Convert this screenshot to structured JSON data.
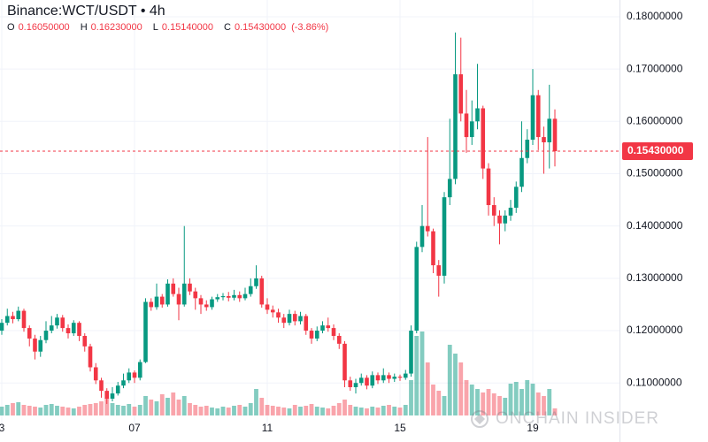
{
  "chart_data": {
    "type": "candlestick",
    "title": "Binance:WCT/USDT • 4h",
    "legend_items": [
      {
        "key": "O",
        "value": "0.16050000"
      },
      {
        "key": "H",
        "value": "0.16230000"
      },
      {
        "key": "L",
        "value": "0.15140000"
      },
      {
        "key": "C",
        "value": "0.15430000"
      }
    ],
    "change": "(-3.86%)",
    "last_price": {
      "value": 0.1543,
      "label": "0.15430000"
    },
    "watermark": "ONCHAIN INSIDER",
    "up_color": "#089981",
    "down_color": "#f23645",
    "grid": true,
    "categories": [
      "3",
      null,
      null,
      null,
      null,
      null,
      null,
      null,
      null,
      null,
      null,
      null,
      null,
      null,
      null,
      null,
      null,
      null,
      null,
      null,
      null,
      null,
      null,
      null,
      "07",
      null,
      null,
      null,
      null,
      null,
      null,
      null,
      null,
      null,
      null,
      null,
      null,
      null,
      null,
      null,
      null,
      null,
      null,
      null,
      null,
      null,
      null,
      null,
      "11",
      null,
      null,
      null,
      null,
      null,
      null,
      null,
      null,
      null,
      null,
      null,
      null,
      null,
      null,
      null,
      null,
      null,
      null,
      null,
      null,
      null,
      null,
      null,
      "15",
      null,
      null,
      null,
      null,
      null,
      null,
      null,
      null,
      null,
      null,
      null,
      null,
      null,
      null,
      null,
      null,
      null,
      null,
      null,
      null,
      null,
      null,
      null,
      "19",
      null,
      null,
      null,
      null
    ],
    "open": [
      0.12,
      0.1215,
      0.1228,
      0.1222,
      0.1238,
      0.1205,
      0.1185,
      0.116,
      0.1182,
      0.12,
      0.121,
      0.1225,
      0.1205,
      0.1195,
      0.1215,
      0.119,
      0.117,
      0.113,
      0.1105,
      0.1085,
      0.107,
      0.108,
      0.1095,
      0.1105,
      0.112,
      0.111,
      0.114,
      0.1255,
      0.1245,
      0.1265,
      0.125,
      0.129,
      0.127,
      0.125,
      0.129,
      0.1275,
      0.1262,
      0.125,
      0.1245,
      0.126,
      0.1264,
      0.1266,
      0.1263,
      0.1268,
      0.1262,
      0.127,
      0.1285,
      0.13,
      0.125,
      0.124,
      0.1235,
      0.1225,
      0.1215,
      0.1232,
      0.1218,
      0.1228,
      0.12,
      0.1185,
      0.12,
      0.121,
      0.1205,
      0.119,
      0.1175,
      0.1105,
      0.1092,
      0.11,
      0.111,
      0.1095,
      0.1115,
      0.1105,
      0.1115,
      0.1108,
      0.1112,
      0.111,
      0.1118,
      0.12,
      0.136,
      0.14,
      0.139,
      0.1325,
      0.1305,
      0.1455,
      0.149,
      0.169,
      0.1615,
      0.157,
      0.16,
      0.1625,
      0.151,
      0.144,
      0.142,
      0.1405,
      0.142,
      0.1435,
      0.1475,
      0.153,
      0.1565,
      0.165,
      0.157,
      0.156,
      0.1605
    ],
    "high": [
      0.1222,
      0.1242,
      0.1236,
      0.1246,
      0.1242,
      0.121,
      0.1192,
      0.119,
      0.1218,
      0.1228,
      0.1232,
      0.123,
      0.1212,
      0.122,
      0.1218,
      0.1195,
      0.1175,
      0.1138,
      0.111,
      0.109,
      0.1092,
      0.1102,
      0.1118,
      0.1128,
      0.1124,
      0.1145,
      0.1262,
      0.1262,
      0.129,
      0.127,
      0.1298,
      0.13,
      0.1282,
      0.14,
      0.13,
      0.1282,
      0.1268,
      0.1258,
      0.1265,
      0.127,
      0.1272,
      0.1274,
      0.1278,
      0.1275,
      0.1282,
      0.13,
      0.1325,
      0.1305,
      0.1262,
      0.1248,
      0.1242,
      0.1232,
      0.124,
      0.1238,
      0.1236,
      0.1232,
      0.1205,
      0.1208,
      0.1218,
      0.1225,
      0.1212,
      0.1195,
      0.118,
      0.1112,
      0.1108,
      0.1118,
      0.1115,
      0.1122,
      0.112,
      0.1128,
      0.112,
      0.1118,
      0.1116,
      0.1125,
      0.121,
      0.137,
      0.144,
      0.157,
      0.1395,
      0.1335,
      0.1465,
      0.1605,
      0.177,
      0.176,
      0.166,
      0.164,
      0.171,
      0.163,
      0.152,
      0.1455,
      0.143,
      0.143,
      0.145,
      0.1485,
      0.16,
      0.1585,
      0.17,
      0.166,
      0.159,
      0.167,
      0.1623
    ],
    "low": [
      0.1192,
      0.121,
      0.1214,
      0.1218,
      0.1198,
      0.117,
      0.1145,
      0.115,
      0.1176,
      0.1195,
      0.1204,
      0.1198,
      0.1185,
      0.119,
      0.118,
      0.116,
      0.1122,
      0.1098,
      0.1072,
      0.106,
      0.1065,
      0.1076,
      0.109,
      0.11,
      0.11,
      0.1105,
      0.1138,
      0.1238,
      0.124,
      0.1244,
      0.1246,
      0.1265,
      0.122,
      0.1246,
      0.1268,
      0.124,
      0.1232,
      0.1238,
      0.124,
      0.1255,
      0.1258,
      0.1256,
      0.1258,
      0.1255,
      0.1258,
      0.1265,
      0.128,
      0.1244,
      0.1232,
      0.1225,
      0.1215,
      0.1205,
      0.121,
      0.121,
      0.1212,
      0.1192,
      0.1175,
      0.118,
      0.1195,
      0.1198,
      0.1182,
      0.1165,
      0.1092,
      0.1085,
      0.108,
      0.1095,
      0.1088,
      0.109,
      0.1098,
      0.11,
      0.11,
      0.1102,
      0.1104,
      0.1106,
      0.1112,
      0.1195,
      0.135,
      0.138,
      0.131,
      0.1265,
      0.129,
      0.144,
      0.148,
      0.16,
      0.154,
      0.1555,
      0.1585,
      0.149,
      0.142,
      0.14,
      0.1365,
      0.139,
      0.141,
      0.1425,
      0.1465,
      0.152,
      0.1555,
      0.1545,
      0.15,
      0.151,
      0.1514
    ],
    "close": [
      0.1215,
      0.1228,
      0.1222,
      0.1238,
      0.1205,
      0.1185,
      0.116,
      0.1182,
      0.12,
      0.121,
      0.1225,
      0.1205,
      0.1195,
      0.1215,
      0.119,
      0.117,
      0.113,
      0.1105,
      0.1085,
      0.107,
      0.108,
      0.1095,
      0.1105,
      0.112,
      0.111,
      0.114,
      0.1255,
      0.1245,
      0.1265,
      0.125,
      0.129,
      0.127,
      0.125,
      0.129,
      0.1275,
      0.1262,
      0.125,
      0.1245,
      0.126,
      0.1264,
      0.1266,
      0.1263,
      0.1268,
      0.1262,
      0.127,
      0.1285,
      0.13,
      0.125,
      0.124,
      0.1235,
      0.1225,
      0.1215,
      0.1232,
      0.1218,
      0.1228,
      0.12,
      0.1185,
      0.12,
      0.121,
      0.1205,
      0.119,
      0.1175,
      0.1105,
      0.1092,
      0.11,
      0.111,
      0.1095,
      0.1115,
      0.1105,
      0.1115,
      0.1108,
      0.1112,
      0.111,
      0.1118,
      0.12,
      0.136,
      0.14,
      0.139,
      0.1325,
      0.1305,
      0.1455,
      0.149,
      0.169,
      0.1615,
      0.157,
      0.16,
      0.1625,
      0.151,
      0.144,
      0.142,
      0.1405,
      0.142,
      0.1435,
      0.1475,
      0.153,
      0.1565,
      0.165,
      0.157,
      0.156,
      0.1605,
      0.1543
    ],
    "volume": [
      10,
      12,
      14,
      15,
      12,
      11,
      10,
      9,
      12,
      13,
      11,
      10,
      9,
      8,
      10,
      12,
      13,
      14,
      16,
      20,
      14,
      12,
      11,
      13,
      10,
      12,
      22,
      18,
      16,
      24,
      20,
      26,
      18,
      22,
      14,
      12,
      10,
      11,
      9,
      8,
      10,
      9,
      11,
      12,
      10,
      14,
      30,
      20,
      12,
      11,
      10,
      9,
      8,
      12,
      10,
      11,
      13,
      10,
      9,
      8,
      11,
      14,
      18,
      12,
      10,
      9,
      8,
      10,
      9,
      11,
      12,
      10,
      9,
      12,
      40,
      90,
      95,
      60,
      35,
      28,
      22,
      80,
      70,
      60,
      40,
      35,
      30,
      26,
      30,
      25,
      22,
      20,
      36,
      38,
      30,
      40,
      36,
      26,
      22,
      30,
      8
    ],
    "ylim": [
      0.1021,
      0.1832
    ],
    "yticks": [
      {
        "value": 0.11,
        "label": "0.11000000"
      },
      {
        "value": 0.12,
        "label": "0.12000000"
      },
      {
        "value": 0.13,
        "label": "0.13000000"
      },
      {
        "value": 0.14,
        "label": "0.14000000"
      },
      {
        "value": 0.15,
        "label": "0.15000000"
      },
      {
        "value": 0.16,
        "label": "0.16000000"
      },
      {
        "value": 0.17,
        "label": "0.17000000"
      },
      {
        "value": 0.18,
        "label": "0.18000000"
      }
    ]
  }
}
